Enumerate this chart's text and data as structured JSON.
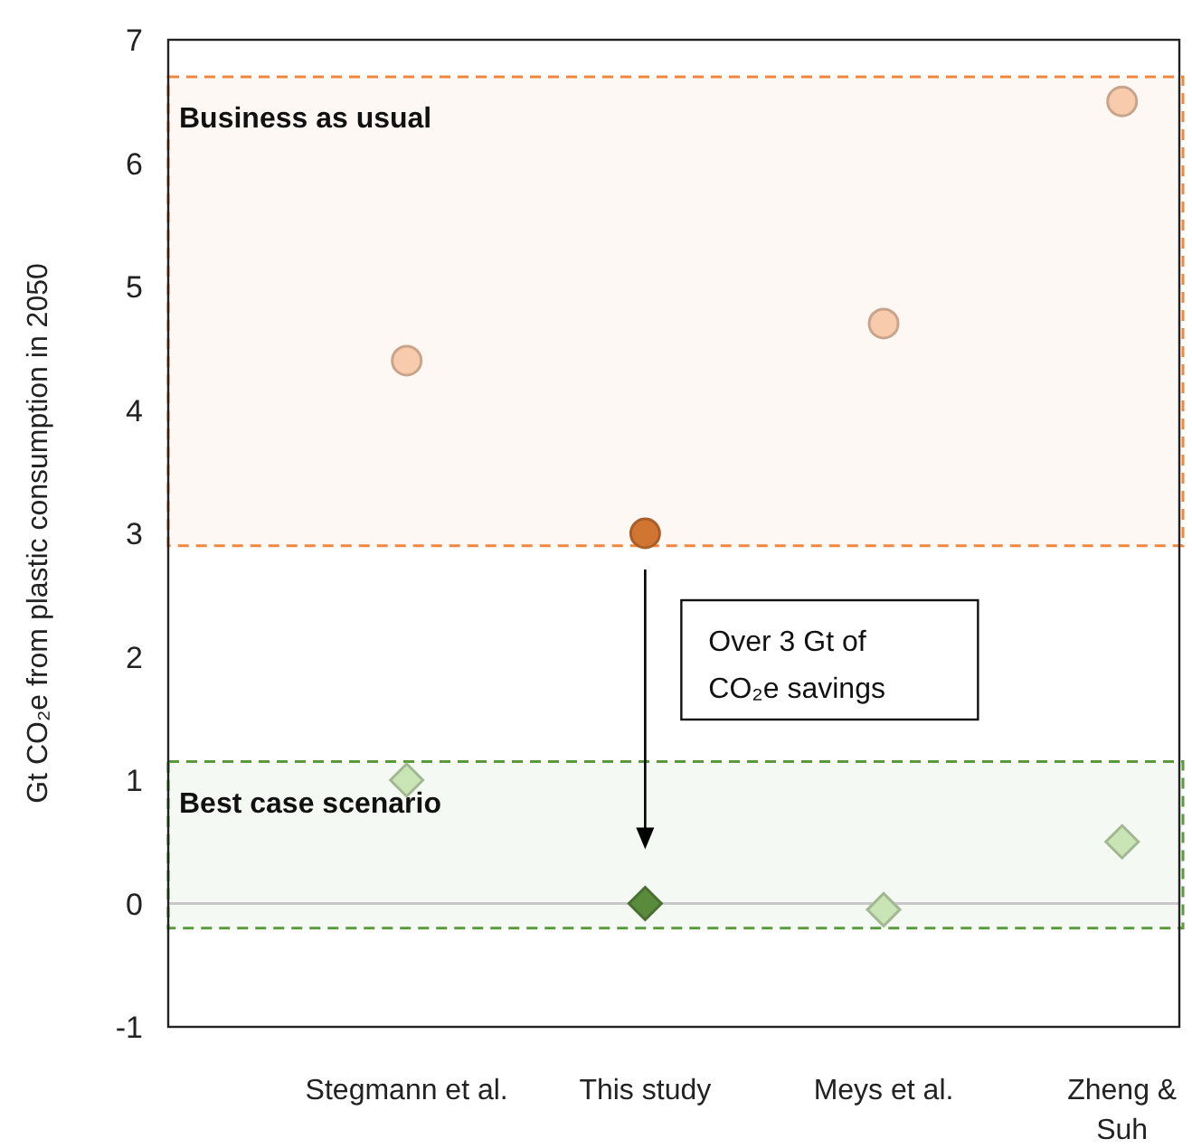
{
  "chart_data": {
    "type": "scatter",
    "ylabel": "Gt CO₂e from plastic consumption in 2050",
    "categories": [
      "Stegmann et al.",
      "This study",
      "Meys et al.",
      "Zheng & Suh"
    ],
    "series": [
      {
        "color": "#f8cbad",
        "marker": "circle",
        "values": [
          4.4,
          null,
          4.7,
          6.5
        ]
      },
      {
        "color": "#d07532",
        "marker": "circle",
        "values": [
          null,
          3.0,
          null,
          null
        ]
      },
      {
        "color": "#c9e4b5",
        "marker": "diamond",
        "values": [
          1.0,
          null,
          -0.05,
          0.5
        ]
      },
      {
        "color": "#5a8a3c",
        "marker": "diamond",
        "values": [
          null,
          0.0,
          null,
          null
        ]
      }
    ],
    "ylim": [
      -1,
      7
    ],
    "yticks": [
      -1,
      0,
      1,
      2,
      3,
      4,
      5,
      6,
      7
    ],
    "bands": [
      {
        "axis": "y",
        "from": 2.9,
        "to": 6.7,
        "label": "Business as usual",
        "color": "#f0873c"
      },
      {
        "axis": "y",
        "from": -0.2,
        "to": 1.15,
        "label": "Best case scenario",
        "color": "#5a9a3c"
      }
    ],
    "ref_lines": [
      {
        "axis": "y",
        "value": 0,
        "color": "#c8c8c8"
      }
    ],
    "annotations": [
      "Over 3 Gt of CO₂e savings"
    ],
    "grid": false
  }
}
